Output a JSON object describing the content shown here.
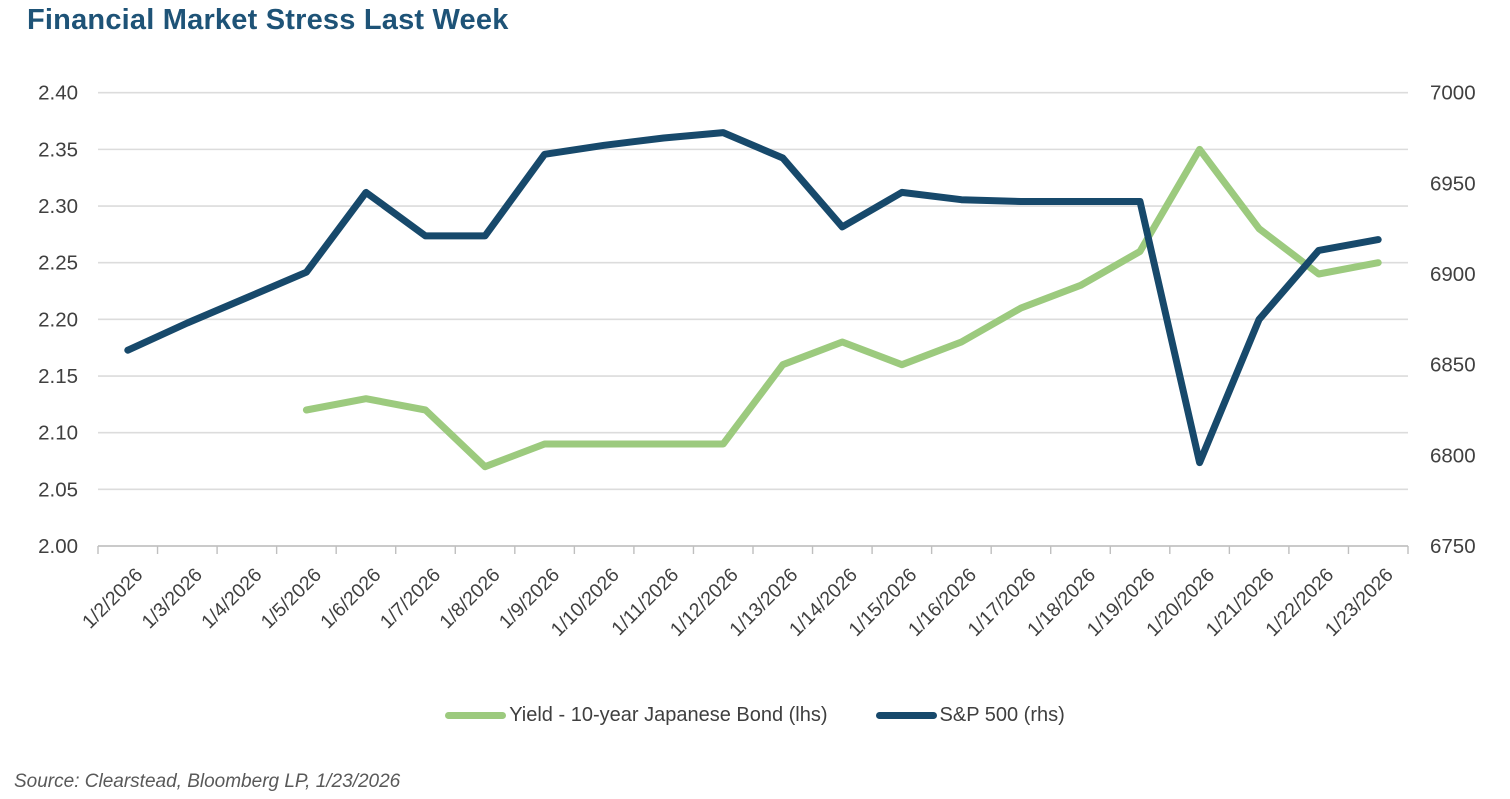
{
  "page": {
    "title": "Financial Market Stress Last Week",
    "source_note": "Source: Clearstead, Bloomberg LP, 1/23/2026"
  },
  "colors": {
    "title_text": "#1e5377",
    "axis_text": "#404040",
    "gridline": "#dcdcdc",
    "axis_line": "#bfbfbf",
    "legend_text": "#3f3f3f",
    "source_text": "#595959",
    "yield_line": "#9cca7e",
    "sp500_line": "#17496b"
  },
  "chart_data": {
    "type": "line",
    "title": "Financial Market Stress Last Week",
    "x_labels": [
      "1/2/2026",
      "1/3/2026",
      "1/4/2026",
      "1/5/2026",
      "1/6/2026",
      "1/7/2026",
      "1/8/2026",
      "1/9/2026",
      "1/10/2026",
      "1/11/2026",
      "1/12/2026",
      "1/13/2026",
      "1/14/2026",
      "1/15/2026",
      "1/16/2026",
      "1/17/2026",
      "1/18/2026",
      "1/19/2026",
      "1/20/2026",
      "1/21/2026",
      "1/22/2026",
      "1/23/2026"
    ],
    "left_axis": {
      "min": 2.0,
      "max": 2.4,
      "step": 0.05,
      "label_ticks": [
        "2.40",
        "2.35",
        "2.30",
        "2.25",
        "2.20",
        "2.15",
        "2.10",
        "2.05",
        "2.00"
      ]
    },
    "right_axis": {
      "min": 6750,
      "max": 7000,
      "step": 50,
      "label_ticks": [
        "7000",
        "6950",
        "6900",
        "6850",
        "6800",
        "6750"
      ]
    },
    "grid": true,
    "legend_position": "bottom",
    "series": [
      {
        "name": "Yield - 10-year Japanese Bond (lhs)",
        "axis": "left",
        "color": "#9cca7e",
        "values": [
          null,
          null,
          null,
          2.12,
          2.13,
          2.12,
          2.07,
          2.09,
          2.09,
          2.09,
          2.09,
          2.16,
          2.18,
          2.16,
          2.18,
          2.21,
          2.23,
          2.26,
          2.35,
          2.28,
          2.24,
          2.25
        ]
      },
      {
        "name": "S&P 500 (rhs)",
        "axis": "right",
        "color": "#17496b",
        "values": [
          6858,
          6873,
          6887,
          6901,
          6945,
          6921,
          6921,
          6966,
          6971,
          6975,
          6978,
          6964,
          6926,
          6945,
          6941,
          6940,
          6940,
          6940,
          6796,
          6875,
          6913,
          6919
        ]
      }
    ]
  }
}
